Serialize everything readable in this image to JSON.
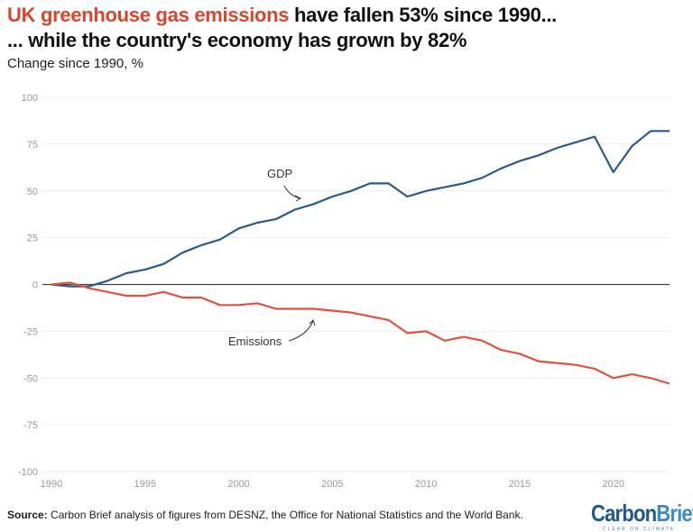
{
  "title_highlight": "UK greenhouse gas emissions",
  "title_rest": " have fallen 53% since 1990...",
  "title_line2": "... while the country's economy has grown by 82%",
  "subtitle": "Change since 1990, %",
  "source_label": "Source:",
  "source_text": " Carbon Brief analysis of figures from DESNZ, the Office for National Statistics and the World Bank.",
  "logo": {
    "part1": "Carbon",
    "part2": "Brief",
    "tagline": "CLEAR ON CLIMATE"
  },
  "colors": {
    "gdp": "#2a5a8a",
    "emissions": "#e0533b",
    "title_accent": "#d9452e"
  },
  "chart_data": {
    "type": "line",
    "ylim": [
      -100,
      100
    ],
    "xlim": [
      1990,
      2023
    ],
    "yticks": [
      100,
      75,
      50,
      25,
      0,
      -25,
      -50,
      -75,
      -100
    ],
    "xticks": [
      1990,
      1995,
      2000,
      2005,
      2010,
      2015,
      2020
    ],
    "grid": true,
    "x": [
      1990,
      1991,
      1992,
      1993,
      1994,
      1995,
      1996,
      1997,
      1998,
      1999,
      2000,
      2001,
      2002,
      2003,
      2004,
      2005,
      2006,
      2007,
      2008,
      2009,
      2010,
      2011,
      2012,
      2013,
      2014,
      2015,
      2016,
      2017,
      2018,
      2019,
      2020,
      2021,
      2022,
      2023
    ],
    "series": [
      {
        "name": "GDP",
        "values": [
          0,
          -1,
          -1,
          2,
          6,
          8,
          11,
          17,
          21,
          24,
          30,
          33,
          35,
          40,
          43,
          47,
          50,
          54,
          54,
          47,
          50,
          52,
          54,
          57,
          62,
          66,
          69,
          73,
          76,
          79,
          60,
          74,
          82,
          82
        ]
      },
      {
        "name": "Emissions",
        "values": [
          0,
          1,
          -2,
          -4,
          -6,
          -6,
          -4,
          -7,
          -7,
          -11,
          -11,
          -10,
          -13,
          -13,
          -13,
          -14,
          -15,
          -17,
          -19,
          -26,
          -25,
          -30,
          -28,
          -30,
          -35,
          -37,
          -41,
          -42,
          -43,
          -45,
          -50,
          -48,
          -50,
          -53
        ]
      }
    ]
  }
}
